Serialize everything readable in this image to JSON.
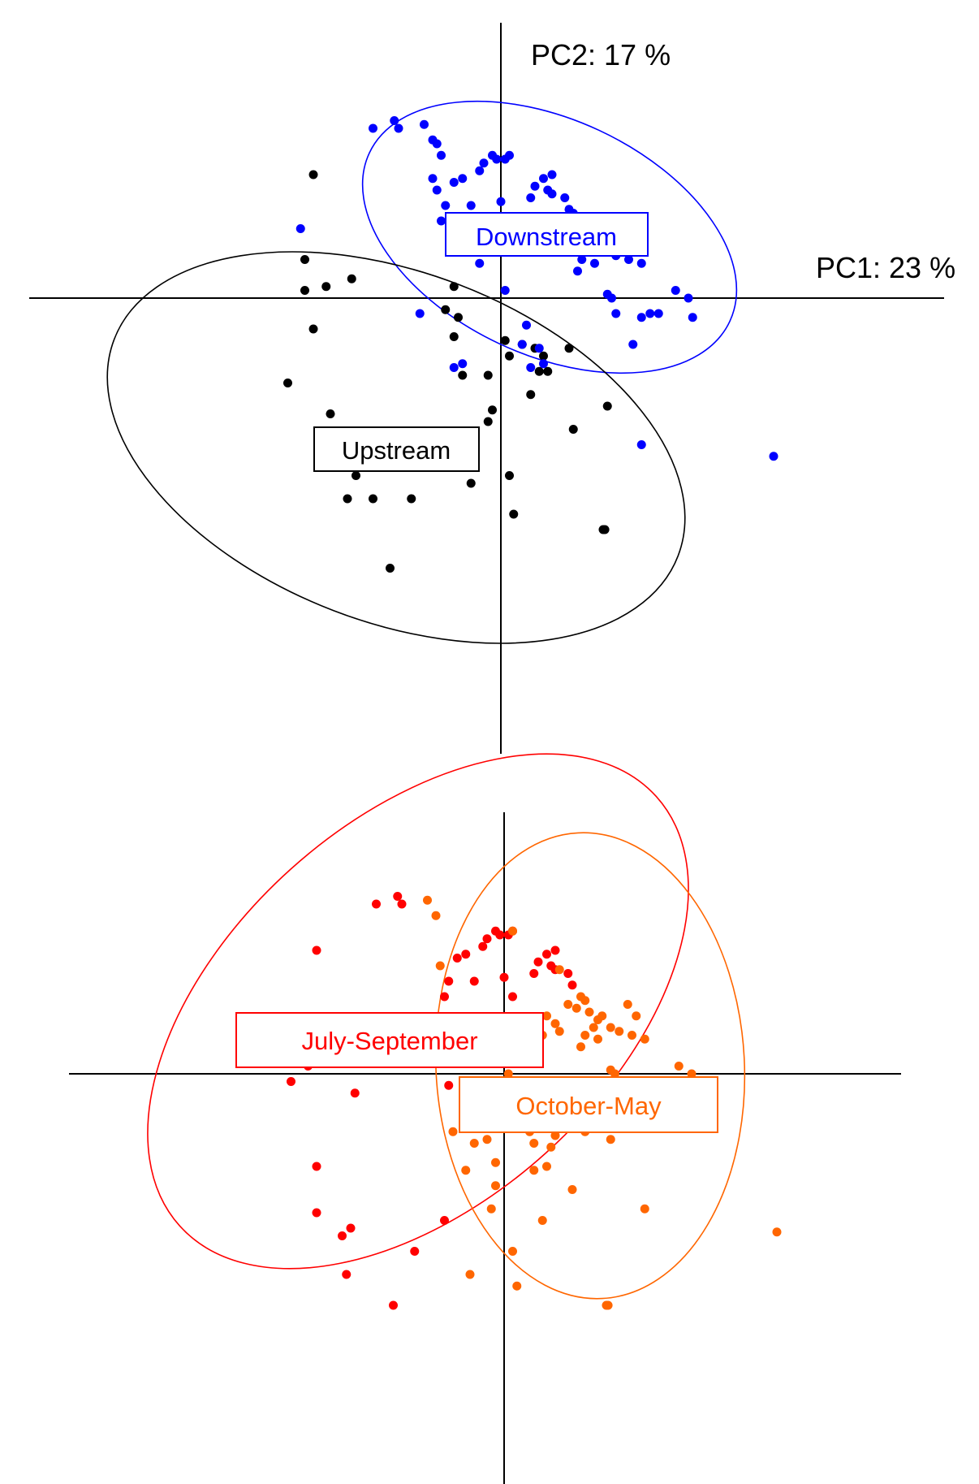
{
  "chart_data": [
    {
      "type": "scatter",
      "title": "",
      "xlabel": "PC1: 23 %",
      "ylabel": "PC2: 17 %",
      "grid": false,
      "series": [
        {
          "name": "Upstream",
          "color": "#000000",
          "points": [
            [
              -2.5,
              -1.1
            ],
            [
              -2.2,
              -0.4
            ],
            [
              -2.3,
              0.5
            ],
            [
              -2.3,
              0.1
            ],
            [
              -2.2,
              1.6
            ],
            [
              -2.05,
              0.15
            ],
            [
              -2.0,
              -1.5
            ],
            [
              -1.9,
              -2.0
            ],
            [
              -1.8,
              -2.6
            ],
            [
              -1.7,
              -2.3
            ],
            [
              -1.5,
              -2.6
            ],
            [
              -1.3,
              -3.5
            ],
            [
              -1.05,
              -2.6
            ],
            [
              -1.75,
              0.25
            ],
            [
              -0.7,
              -1.8
            ],
            [
              -0.65,
              -0.15
            ],
            [
              -0.55,
              -0.5
            ],
            [
              -0.5,
              -0.25
            ],
            [
              -0.45,
              -1.0
            ],
            [
              -0.35,
              -2.4
            ],
            [
              -0.15,
              -1.6
            ],
            [
              -0.15,
              -1.0
            ],
            [
              -0.1,
              -1.45
            ],
            [
              0.05,
              -0.55
            ],
            [
              0.1,
              -0.75
            ],
            [
              0.1,
              -2.3
            ],
            [
              0.15,
              -2.8
            ],
            [
              0.25,
              -0.6
            ],
            [
              0.35,
              -1.25
            ],
            [
              0.4,
              -0.65
            ],
            [
              0.45,
              -0.95
            ],
            [
              0.5,
              -0.75
            ],
            [
              0.55,
              -0.95
            ],
            [
              0.8,
              -0.65
            ],
            [
              0.85,
              -1.7
            ],
            [
              1.25,
              -1.4
            ],
            [
              1.2,
              -3.0
            ],
            [
              1.22,
              -3.0
            ],
            [
              -0.55,
              0.15
            ]
          ]
        },
        {
          "name": "Downstream",
          "color": "#0000ff",
          "points": [
            [
              -1.5,
              2.2
            ],
            [
              -1.25,
              2.3
            ],
            [
              -1.2,
              2.2
            ],
            [
              -0.9,
              2.25
            ],
            [
              -0.8,
              2.05
            ],
            [
              -0.75,
              2.0
            ],
            [
              -0.7,
              1.85
            ],
            [
              -0.8,
              1.55
            ],
            [
              -0.75,
              1.4
            ],
            [
              -0.7,
              1.0
            ],
            [
              -0.65,
              1.2
            ],
            [
              -0.55,
              1.5
            ],
            [
              -0.45,
              1.55
            ],
            [
              -0.35,
              1.2
            ],
            [
              -0.25,
              1.65
            ],
            [
              -0.2,
              1.75
            ],
            [
              -0.1,
              1.85
            ],
            [
              -0.05,
              1.8
            ],
            [
              0.0,
              1.0
            ],
            [
              0.0,
              1.25
            ],
            [
              0.05,
              1.8
            ],
            [
              0.1,
              1.85
            ],
            [
              0.35,
              1.3
            ],
            [
              0.4,
              1.45
            ],
            [
              0.5,
              1.55
            ],
            [
              0.55,
              1.4
            ],
            [
              0.6,
              1.35
            ],
            [
              0.6,
              1.6
            ],
            [
              0.75,
              1.3
            ],
            [
              0.8,
              1.15
            ],
            [
              0.85,
              1.1
            ],
            [
              0.9,
              1.0
            ],
            [
              0.95,
              0.95
            ],
            [
              0.6,
              0.85
            ],
            [
              0.65,
              0.65
            ],
            [
              1.0,
              0.8
            ],
            [
              1.05,
              0.85
            ],
            [
              1.1,
              0.7
            ],
            [
              1.15,
              0.75
            ],
            [
              1.1,
              0.45
            ],
            [
              0.95,
              0.5
            ],
            [
              0.9,
              0.35
            ],
            [
              1.25,
              0.6
            ],
            [
              1.35,
              0.55
            ],
            [
              1.45,
              0.9
            ],
            [
              1.55,
              0.75
            ],
            [
              1.5,
              0.5
            ],
            [
              1.65,
              0.45
            ],
            [
              1.3,
              0.0
            ],
            [
              1.25,
              0.05
            ],
            [
              1.35,
              -0.2
            ],
            [
              1.55,
              -0.6
            ],
            [
              1.65,
              -0.25
            ],
            [
              1.75,
              -0.2
            ],
            [
              1.85,
              -0.2
            ],
            [
              2.05,
              0.1
            ],
            [
              2.2,
              0.0
            ],
            [
              2.25,
              -0.25
            ],
            [
              0.05,
              0.1
            ],
            [
              -0.25,
              0.45
            ],
            [
              -0.45,
              -0.85
            ],
            [
              -0.55,
              -0.9
            ],
            [
              -0.95,
              -0.2
            ],
            [
              0.25,
              -0.6
            ],
            [
              0.35,
              -0.9
            ],
            [
              0.45,
              -0.65
            ],
            [
              0.5,
              -0.85
            ],
            [
              0.3,
              -0.35
            ],
            [
              1.65,
              -1.9
            ],
            [
              3.2,
              -2.05
            ],
            [
              -2.35,
              0.9
            ]
          ]
        }
      ],
      "labels": [
        "Downstream",
        "Upstream"
      ]
    },
    {
      "type": "scatter",
      "title": "",
      "xlabel": "",
      "ylabel": "",
      "grid": false,
      "series": [
        {
          "name": "July-September",
          "color": "#ff0000",
          "points": [
            [
              -2.5,
              -0.1
            ],
            [
              -2.3,
              0.5
            ],
            [
              -2.3,
              0.1
            ],
            [
              -2.2,
              1.6
            ],
            [
              -2.2,
              -1.2
            ],
            [
              -2.2,
              -1.8
            ],
            [
              -2.0,
              0.45
            ],
            [
              -1.75,
              -0.25
            ],
            [
              -1.5,
              2.2
            ],
            [
              -1.25,
              2.3
            ],
            [
              -1.2,
              2.2
            ],
            [
              -1.9,
              -2.1
            ],
            [
              -1.8,
              -2.0
            ],
            [
              -1.85,
              -2.6
            ],
            [
              -1.3,
              -3.0
            ],
            [
              -1.05,
              -2.3
            ],
            [
              -0.7,
              -1.9
            ],
            [
              -0.65,
              -0.15
            ],
            [
              -0.55,
              0.15
            ],
            [
              -0.7,
              1.0
            ],
            [
              -0.65,
              1.2
            ],
            [
              -0.55,
              1.5
            ],
            [
              -0.45,
              1.55
            ],
            [
              -0.35,
              1.2
            ],
            [
              -0.25,
              1.65
            ],
            [
              -0.2,
              1.75
            ],
            [
              -0.1,
              1.85
            ],
            [
              -0.05,
              1.8
            ],
            [
              0.05,
              1.8
            ],
            [
              0.1,
              1.85
            ],
            [
              0.0,
              1.25
            ],
            [
              0.1,
              1.0
            ],
            [
              0.35,
              1.3
            ],
            [
              0.4,
              1.45
            ],
            [
              0.5,
              1.55
            ],
            [
              0.55,
              1.4
            ],
            [
              0.6,
              1.35
            ],
            [
              0.6,
              1.6
            ],
            [
              0.75,
              1.3
            ],
            [
              0.8,
              1.15
            ],
            [
              0.3,
              0.45
            ],
            [
              0.2,
              0.65
            ],
            [
              0.25,
              -0.6
            ],
            [
              -0.75,
              0.25
            ]
          ]
        },
        {
          "name": "October-May",
          "color": "#ff6600",
          "points": [
            [
              -0.9,
              2.25
            ],
            [
              -0.8,
              2.05
            ],
            [
              -0.75,
              1.4
            ],
            [
              -0.35,
              0.3
            ],
            [
              0.0,
              0.35
            ],
            [
              0.05,
              0.55
            ],
            [
              0.1,
              1.85
            ],
            [
              0.35,
              0.6
            ],
            [
              0.45,
              0.5
            ],
            [
              0.5,
              0.75
            ],
            [
              0.65,
              1.35
            ],
            [
              0.75,
              0.9
            ],
            [
              0.85,
              0.85
            ],
            [
              0.9,
              1.0
            ],
            [
              0.95,
              0.95
            ],
            [
              0.6,
              0.65
            ],
            [
              0.65,
              0.55
            ],
            [
              1.0,
              0.8
            ],
            [
              1.05,
              0.6
            ],
            [
              1.1,
              0.7
            ],
            [
              1.15,
              0.75
            ],
            [
              1.1,
              0.45
            ],
            [
              0.95,
              0.5
            ],
            [
              0.9,
              0.35
            ],
            [
              1.25,
              0.6
            ],
            [
              1.35,
              0.55
            ],
            [
              1.45,
              0.9
            ],
            [
              1.55,
              0.75
            ],
            [
              1.5,
              0.5
            ],
            [
              1.65,
              0.45
            ],
            [
              1.3,
              0.0
            ],
            [
              1.25,
              0.05
            ],
            [
              1.35,
              -0.2
            ],
            [
              1.55,
              -0.6
            ],
            [
              1.65,
              -0.25
            ],
            [
              1.75,
              -0.2
            ],
            [
              1.85,
              -0.2
            ],
            [
              2.05,
              0.1
            ],
            [
              2.2,
              0.0
            ],
            [
              2.25,
              -0.25
            ],
            [
              0.05,
              0.0
            ],
            [
              -0.25,
              -0.25
            ],
            [
              -0.6,
              -0.75
            ],
            [
              -0.45,
              -1.25
            ],
            [
              -0.35,
              -0.9
            ],
            [
              -0.2,
              -0.85
            ],
            [
              -0.1,
              -1.15
            ],
            [
              0.3,
              -0.75
            ],
            [
              0.35,
              -0.9
            ],
            [
              0.45,
              -0.65
            ],
            [
              0.55,
              -0.95
            ],
            [
              0.5,
              -1.2
            ],
            [
              0.6,
              -0.8
            ],
            [
              0.6,
              -0.55
            ],
            [
              0.85,
              -0.6
            ],
            [
              0.95,
              -0.75
            ],
            [
              0.8,
              -1.5
            ],
            [
              1.25,
              -0.85
            ],
            [
              1.65,
              -1.75
            ],
            [
              1.2,
              -3.0
            ],
            [
              1.22,
              -3.0
            ],
            [
              0.1,
              -2.3
            ],
            [
              0.15,
              -2.75
            ],
            [
              0.35,
              -1.25
            ],
            [
              -0.15,
              -1.75
            ],
            [
              -0.1,
              -1.45
            ],
            [
              -0.4,
              -2.6
            ],
            [
              3.2,
              -2.05
            ],
            [
              0.45,
              -1.9
            ]
          ]
        }
      ],
      "labels": [
        "July-September",
        "October-May"
      ]
    }
  ],
  "colors": {
    "upstream": "#000000",
    "downstream": "#0000ff",
    "july_sept": "#ff0000",
    "oct_may": "#ff6600"
  }
}
